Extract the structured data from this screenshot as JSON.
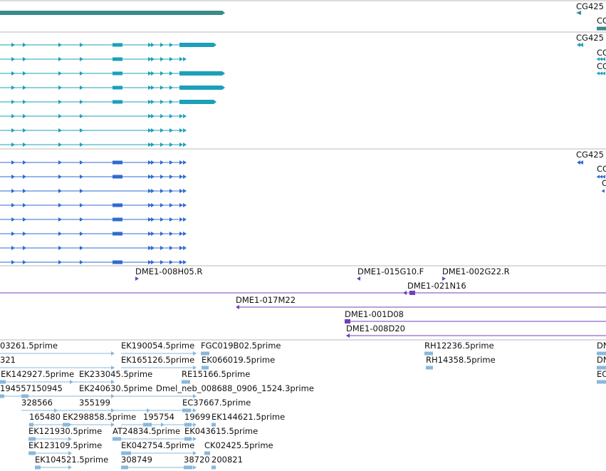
{
  "colors": {
    "track1": "#3a8a8a",
    "track2": "#1ca0ba",
    "track3": "#2f6bd0",
    "clones": "#7040b8",
    "ests": "#88b8dc",
    "divider": "#b8b8b8"
  },
  "tracks": {
    "track1": {
      "labels": [
        "CG425",
        "CG"
      ]
    },
    "track2": {
      "labels": [
        "CG425",
        "CG",
        "CG"
      ]
    },
    "track3": {
      "labels": [
        "CG425",
        "CG",
        "C"
      ]
    },
    "clones": {
      "labels": [
        "DME1-008H05.R",
        "DME1-015G10.F",
        "DME1-002G22.R",
        "DME1-021N16",
        "DME1-017M22",
        "DME1-001D08",
        "DME1-008D20"
      ]
    },
    "ests": {
      "labels": [
        "03261.5prime",
        "EK190054.5prime",
        "FGC019B02.5prime",
        "RH12236.5prime",
        "DN",
        "321",
        "EK165126.5prime",
        "EK066019.5prime",
        "RH14358.5prime",
        "DN",
        "EK142927.5prime",
        "EK233045.5prime",
        "RE15166.5prime",
        "EC",
        "194557150945",
        "EK240630.5prime",
        "Dmel_neb_008688_0906_1524.3prime",
        "328566",
        "355199",
        "EC37667.5prime",
        "165480",
        "EK298858.5prime",
        "195754",
        "19699",
        "EK144621.5prime",
        "EK121930.5prime",
        "AT24834.5prime",
        "EK043615.5prime",
        "EK123109.5prime",
        "EK042754.5prime",
        "CK02425.5prime",
        "EK104521.5prime",
        "308749",
        "38720",
        "200821"
      ]
    }
  }
}
